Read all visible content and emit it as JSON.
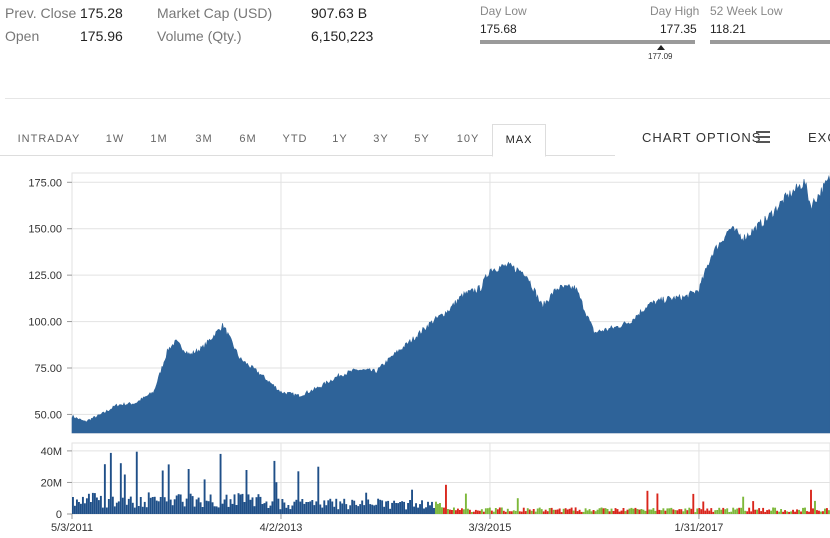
{
  "stats": {
    "prev_close_label": "Prev. Close",
    "prev_close_value": "175.28",
    "open_label": "Open",
    "open_value": "175.96",
    "market_cap_label": "Market Cap (USD)",
    "market_cap_value": "907.63 B",
    "volume_label": "Volume (Qty.)",
    "volume_value": "6,150,223"
  },
  "day_range": {
    "low_label": "Day Low",
    "low_value": "175.68",
    "high_label": "Day High",
    "high_value": "177.35",
    "current_marker": "177.09",
    "current_fraction": 0.84
  },
  "week52": {
    "low_label": "52 Week Low",
    "low_value": "118.21"
  },
  "tabs": [
    "INTRADAY",
    "1W",
    "1M",
    "3M",
    "6M",
    "YTD",
    "1Y",
    "3Y",
    "5Y",
    "10Y",
    "MAX"
  ],
  "active_tab": "MAX",
  "chart_options_label": "CHART OPTIONS",
  "exc_label": "EXC",
  "colors": {
    "area_fill": "#2e6399",
    "volume_blue": "#1f4f88",
    "volume_up": "#7db83a",
    "volume_down": "#d9261c",
    "grid": "#e2e2e2"
  },
  "chart_data": {
    "type": "area",
    "y_ticks": [
      "175.00",
      "150.00",
      "125.00",
      "100.00",
      "75.00",
      "50.00"
    ],
    "ylim": [
      40,
      180
    ],
    "x_ticks": [
      "5/3/2011",
      "4/2/2013",
      "3/3/2015",
      "1/31/2017"
    ],
    "price": {
      "x": [
        "2011-05-03",
        "2011-06-15",
        "2011-08-10",
        "2011-10-01",
        "2011-12-01",
        "2012-02-01",
        "2012-03-20",
        "2012-04-15",
        "2012-06-01",
        "2012-07-15",
        "2012-09-20",
        "2012-11-15",
        "2013-01-20",
        "2013-04-02",
        "2013-06-01",
        "2013-08-01",
        "2013-10-15",
        "2013-12-15",
        "2014-02-15",
        "2014-04-15",
        "2014-06-15",
        "2014-08-15",
        "2014-10-15",
        "2014-12-01",
        "2015-02-01",
        "2015-03-03",
        "2015-05-01",
        "2015-07-01",
        "2015-08-25",
        "2015-10-15",
        "2015-12-15",
        "2016-02-15",
        "2016-05-01",
        "2016-06-15",
        "2016-08-15",
        "2016-10-15",
        "2016-12-15",
        "2017-01-31",
        "2017-03-15",
        "2017-05-15",
        "2017-07-01",
        "2017-09-15",
        "2017-11-15",
        "2018-01-20",
        "2018-02-10",
        "2018-04-15"
      ],
      "y": [
        49,
        46,
        50,
        55,
        56,
        62,
        85,
        89,
        82,
        86,
        98,
        80,
        72,
        62,
        60,
        64,
        71,
        74,
        73,
        82,
        90,
        99,
        106,
        114,
        118,
        128,
        130,
        126,
        108,
        118,
        118,
        94,
        97,
        100,
        109,
        112,
        113,
        117,
        136,
        150,
        145,
        155,
        166,
        175,
        162,
        177
      ]
    },
    "volume": {
      "y_ticks": [
        "40M",
        "20M",
        "0"
      ],
      "ylim": [
        0,
        45
      ],
      "x_start": "2011-05-03",
      "x_end": "2018-04-15",
      "color_change_date": "2014-09-01"
    }
  }
}
